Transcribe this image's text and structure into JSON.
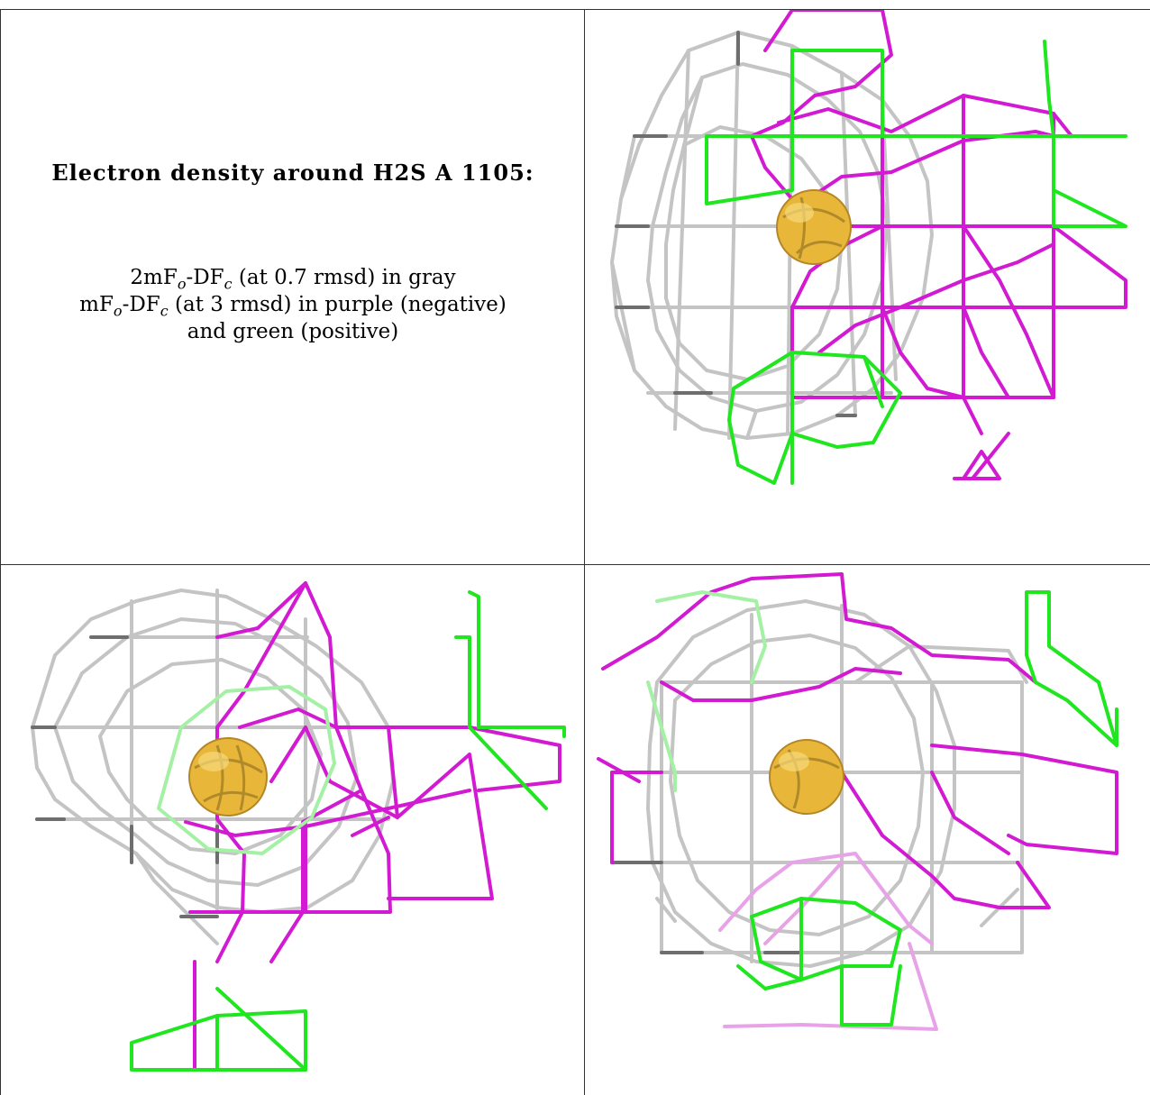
{
  "caption": {
    "title": "Electron density around H2S A 1105:",
    "line1": "2mFₒ-DF꜀ (at 0.7 rmsd) in gray",
    "line1_parts": {
      "a": "2mF",
      "a_sub": "o",
      "b": "-DF",
      "b_sub": "c",
      "c": " (at 0.7 rmsd) in gray"
    },
    "line2_parts": {
      "a": "mF",
      "a_sub": "o",
      "b": "-DF",
      "b_sub": "c",
      "c": " (at 3 rmsd) in purple (negative)"
    },
    "line3": "and green (positive)"
  },
  "colors": {
    "gray_mesh": "#c4c4c4",
    "gray_dark": "#6e6e6e",
    "negative_mesh": "#d21ad2",
    "positive_mesh": "#1fe61f",
    "atom": "#e8b73a"
  },
  "panels": [
    {
      "id": "view-top-right"
    },
    {
      "id": "view-bottom-left"
    },
    {
      "id": "view-bottom-right"
    }
  ]
}
